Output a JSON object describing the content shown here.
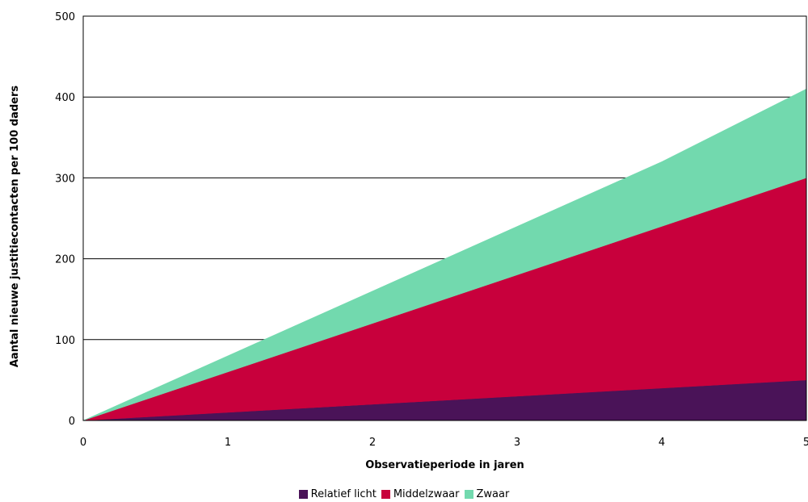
{
  "chart_data": {
    "type": "area",
    "stacked": true,
    "x": [
      0,
      1,
      2,
      3,
      4,
      5
    ],
    "series": [
      {
        "name": "Relatief licht",
        "color": "#4a1358",
        "values": [
          0,
          10,
          20,
          30,
          40,
          50
        ]
      },
      {
        "name": "Middelzwaar",
        "color": "#c8003c",
        "values": [
          0,
          50,
          100,
          150,
          200,
          250
        ]
      },
      {
        "name": "Zwaar",
        "color": "#72d9ae",
        "values": [
          0,
          20,
          40,
          60,
          80,
          110
        ]
      }
    ],
    "xlabel": "Observatieperiode in jaren",
    "ylabel": "Aantal nieuwe justitiecontacten per 100 daders",
    "xlim": [
      0,
      5
    ],
    "ylim": [
      0,
      500
    ],
    "yticks": [
      0,
      100,
      200,
      300,
      400,
      500
    ],
    "xticks": [
      0,
      1,
      2,
      3,
      4,
      5
    ],
    "grid": "horizontal",
    "legend": "bottom"
  }
}
